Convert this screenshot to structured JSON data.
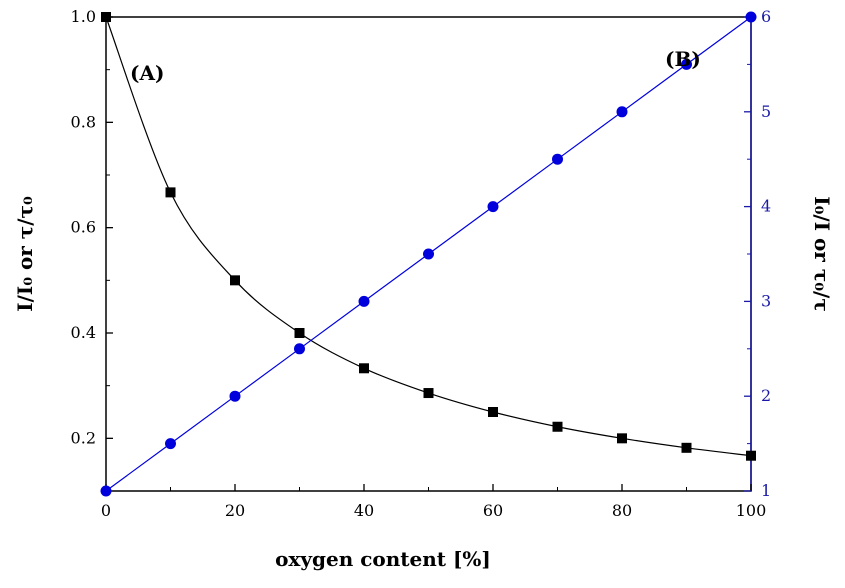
{
  "chart_data": {
    "type": "line",
    "xlabel": "oxygen content [%]",
    "ylabel_left": "I/I₀ or τ/τ₀",
    "ylabel_right": "I₀/I or τ₀/τ",
    "xlim": [
      0,
      100
    ],
    "ylim_left": [
      0.1,
      1.0
    ],
    "ylim_right": [
      1,
      6
    ],
    "x_ticks": [
      "0",
      "20",
      "40",
      "60",
      "80",
      "100"
    ],
    "y_left_ticks": [
      "0.2",
      "0.4",
      "0.6",
      "0.8",
      "1.0"
    ],
    "y_right_ticks": [
      "1",
      "2",
      "3",
      "4",
      "5",
      "6"
    ],
    "panel_labels": {
      "left": "(A)",
      "right": "(B)"
    },
    "series": [
      {
        "name": "I/I0 or tau/tau0",
        "axis": "left",
        "marker": "square",
        "color": "#000000",
        "x": [
          0,
          10,
          20,
          30,
          40,
          50,
          60,
          70,
          80,
          90,
          100
        ],
        "y": [
          1.0,
          0.667,
          0.5,
          0.4,
          0.333,
          0.286,
          0.25,
          0.222,
          0.2,
          0.182,
          0.167
        ]
      },
      {
        "name": "I0/I or tau0/tau",
        "axis": "right",
        "marker": "circle",
        "color": "#0000dd",
        "x": [
          0,
          10,
          20,
          30,
          40,
          50,
          60,
          70,
          80,
          90,
          100
        ],
        "y": [
          1.0,
          1.5,
          2.0,
          2.5,
          3.0,
          3.5,
          4.0,
          4.5,
          5.0,
          5.5,
          6.0
        ]
      }
    ]
  }
}
